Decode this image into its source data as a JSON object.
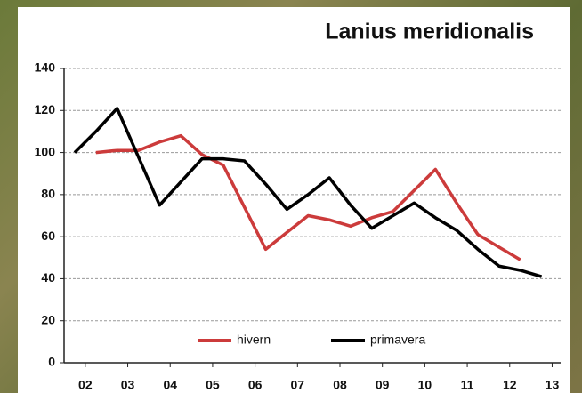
{
  "chart_data": {
    "type": "line",
    "title": "Lanius meridionalis",
    "xlim": [
      1.5,
      13.2
    ],
    "xticks": [
      {
        "value": 2,
        "label": "02"
      },
      {
        "value": 3,
        "label": "03"
      },
      {
        "value": 4,
        "label": "04"
      },
      {
        "value": 5,
        "label": "05"
      },
      {
        "value": 6,
        "label": "06"
      },
      {
        "value": 7,
        "label": "07"
      },
      {
        "value": 8,
        "label": "08"
      },
      {
        "value": 9,
        "label": "09"
      },
      {
        "value": 10,
        "label": "10"
      },
      {
        "value": 11,
        "label": "11"
      },
      {
        "value": 12,
        "label": "12"
      },
      {
        "value": 13,
        "label": "13"
      }
    ],
    "ylim": [
      0,
      140
    ],
    "yticks": [
      0,
      20,
      40,
      60,
      80,
      100,
      120,
      140
    ],
    "grid": true,
    "series": [
      {
        "name": "hivern",
        "color": "#cc3b3b",
        "x": [
          2.25,
          2.75,
          3.25,
          3.75,
          4.25,
          4.75,
          5.25,
          5.75,
          6.25,
          6.75,
          7.25,
          7.75,
          8.25,
          8.75,
          9.25,
          9.75,
          10.25,
          10.75,
          11.25,
          11.75,
          12.25
        ],
        "values": [
          100,
          101,
          101,
          105,
          108,
          99,
          94,
          74,
          54,
          62,
          70,
          68,
          65,
          69,
          72,
          82,
          92,
          76,
          61,
          55,
          49
        ]
      },
      {
        "name": "primavera",
        "color": "#000000",
        "x": [
          1.75,
          2.25,
          2.75,
          3.25,
          3.75,
          4.25,
          4.75,
          5.25,
          5.75,
          6.25,
          6.75,
          7.25,
          7.75,
          8.25,
          8.75,
          9.25,
          9.75,
          10.25,
          10.75,
          11.25,
          11.75,
          12.25,
          12.75
        ],
        "values": [
          100,
          110,
          121,
          98,
          75,
          86,
          97,
          97,
          96,
          85,
          73,
          80,
          88,
          75,
          64,
          70,
          76,
          69,
          63,
          54,
          46,
          44,
          41
        ]
      }
    ]
  }
}
